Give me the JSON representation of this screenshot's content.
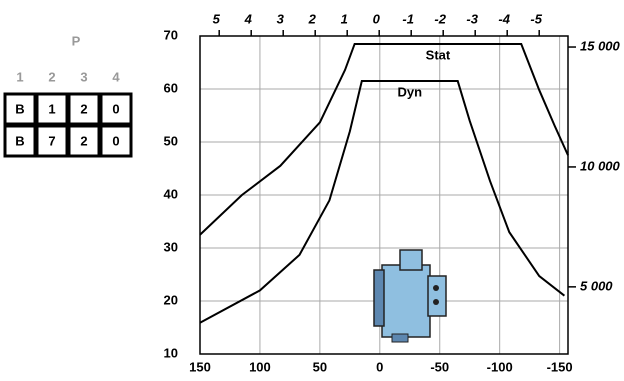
{
  "p_table": {
    "title": "P",
    "columns": [
      "1",
      "2",
      "3",
      "4"
    ],
    "rows": [
      [
        "B",
        "1",
        "2",
        "0"
      ],
      [
        "B",
        "7",
        "2",
        "0"
      ]
    ]
  },
  "chart_data": {
    "type": "line",
    "xlim": [
      150,
      -157
    ],
    "xticks": [
      150,
      100,
      50,
      0,
      -50,
      -100,
      -150
    ],
    "ylim": [
      10,
      70
    ],
    "yticks": [
      10,
      20,
      30,
      40,
      50,
      60,
      70
    ],
    "x2lim": [
      5.6,
      -5.9
    ],
    "x2ticks": [
      5,
      4,
      3,
      2,
      1,
      0,
      -1,
      -2,
      -3,
      -4,
      -5
    ],
    "y2lim": [
      2200,
      15460
    ],
    "y2ticks": [
      {
        "value": 5000,
        "label": "5 000"
      },
      {
        "value": 10000,
        "label": "10 000"
      },
      {
        "value": 15000,
        "label": "15 000"
      }
    ],
    "grid": true,
    "series": [
      {
        "name": "Stat",
        "color": "#000000",
        "x": [
          150,
          115,
          83,
          50,
          29,
          21,
          -118,
          -133,
          -146,
          -157
        ],
        "values": [
          32.5,
          40,
          45.5,
          53.7,
          63.6,
          68.5,
          68.5,
          59.8,
          53,
          47.5
        ]
      },
      {
        "name": "Dyn",
        "color": "#000000",
        "x": [
          150,
          100,
          67,
          42,
          25,
          15,
          -65,
          -75,
          -92,
          -108,
          -133,
          -154
        ],
        "values": [
          15.9,
          22,
          28.7,
          39,
          52,
          61.5,
          61.5,
          54,
          42.6,
          33,
          24.7,
          21
        ]
      }
    ]
  }
}
